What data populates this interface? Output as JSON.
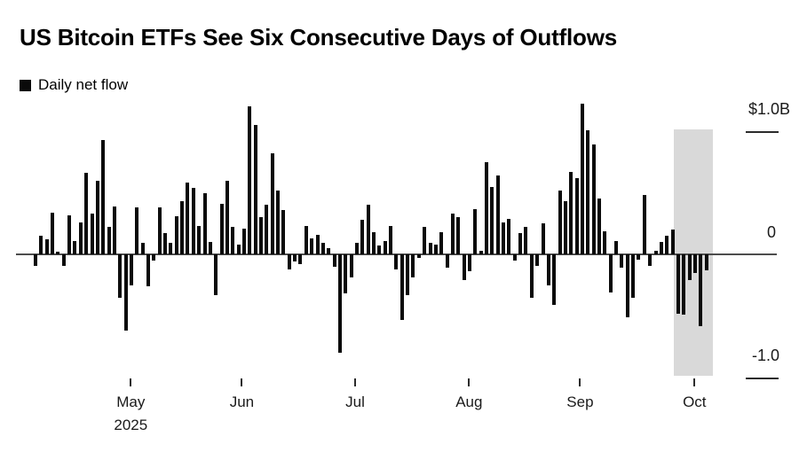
{
  "title": "US Bitcoin ETFs See Six Consecutive Days of Outflows",
  "legend": {
    "label": "Daily net flow"
  },
  "colors": {
    "bar": "#0a0a0a",
    "highlight_band": "#d9d9d9",
    "zero_line": "#4d4d4d",
    "tick": "#2b2b2b",
    "text": "#1a1a1a"
  },
  "chart_data": {
    "type": "bar",
    "title": "US Bitcoin ETFs See Six Consecutive Days of Outflows",
    "series_name": "Daily net flow",
    "unit": "USD billions",
    "ylim": [
      -1.0,
      1.2
    ],
    "grid": false,
    "legend_position": "top-left",
    "y_axis_labels": [
      {
        "text": "$1.0B",
        "value": 1.0
      },
      {
        "text": "0",
        "value": 0
      },
      {
        "text": "-1.0",
        "value": -1.0
      }
    ],
    "x_axis_year_label": "2025",
    "month_ticks": [
      {
        "label": "May",
        "index": 16.9
      },
      {
        "label": "Jun",
        "index": 36.6
      },
      {
        "label": "Jul",
        "index": 56.7
      },
      {
        "label": "Aug",
        "index": 76.9
      },
      {
        "label": "Sep",
        "index": 96.6
      },
      {
        "label": "Oct",
        "index": 116.9
      }
    ],
    "values": [
      -0.09,
      0.15,
      0.12,
      0.34,
      0.02,
      -0.09,
      0.32,
      0.11,
      0.26,
      0.66,
      0.33,
      0.6,
      0.93,
      0.22,
      0.39,
      -0.35,
      -0.62,
      -0.25,
      0.38,
      0.09,
      -0.26,
      -0.05,
      0.38,
      0.17,
      0.09,
      0.31,
      0.43,
      0.58,
      0.54,
      0.23,
      0.5,
      0.1,
      -0.33,
      0.41,
      0.6,
      0.22,
      0.08,
      0.21,
      1.2,
      1.05,
      0.3,
      0.4,
      0.82,
      0.52,
      0.36,
      -0.12,
      -0.06,
      -0.08,
      0.23,
      0.13,
      0.16,
      0.09,
      0.05,
      -0.1,
      -0.8,
      -0.32,
      -0.19,
      0.09,
      0.28,
      0.4,
      0.18,
      0.07,
      0.11,
      0.23,
      -0.12,
      -0.53,
      -0.33,
      -0.19,
      -0.03,
      0.22,
      0.09,
      0.08,
      0.18,
      -0.11,
      0.33,
      0.3,
      -0.21,
      -0.14,
      0.37,
      0.03,
      0.75,
      0.55,
      0.64,
      0.26,
      0.29,
      -0.05,
      0.17,
      0.22,
      -0.35,
      -0.09,
      0.25,
      -0.25,
      -0.41,
      0.52,
      0.43,
      0.67,
      0.62,
      1.22,
      1.01,
      0.89,
      0.45,
      0.19,
      -0.31,
      0.11,
      -0.11,
      -0.51,
      -0.35,
      -0.04,
      0.48,
      -0.09,
      0.03,
      0.1,
      0.15,
      0.2,
      -0.48,
      -0.49,
      -0.21,
      -0.15,
      -0.58,
      -0.13
    ],
    "highlight": {
      "label": "six consecutive outflow days",
      "start_index": 114,
      "end_index": 119
    }
  }
}
